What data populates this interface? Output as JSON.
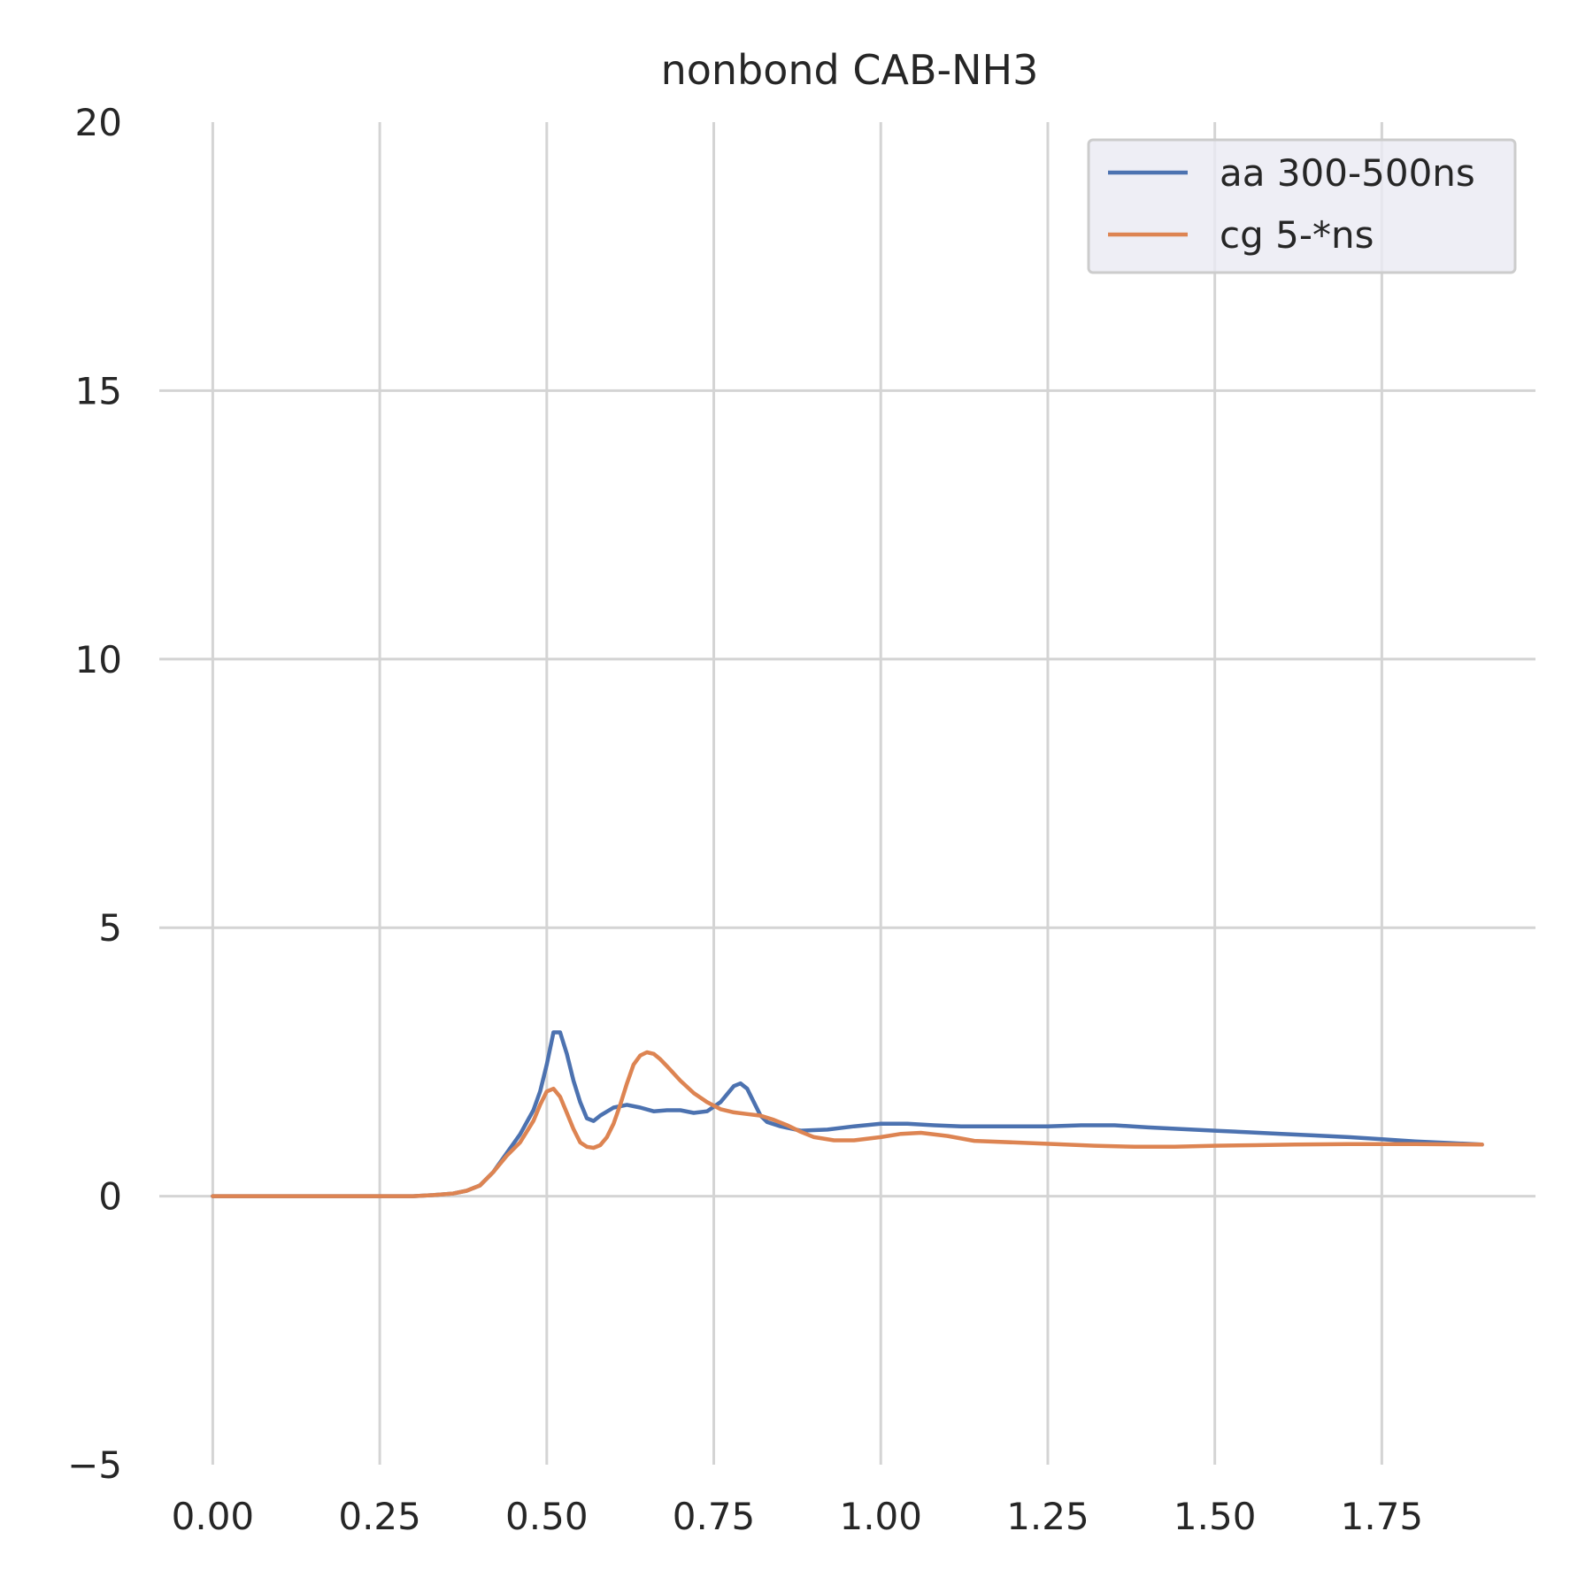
{
  "chart_data": {
    "type": "line",
    "title": "nonbond CAB-NH3",
    "xlabel": "",
    "ylabel": "",
    "xlim": [
      -0.08,
      1.98
    ],
    "ylim": [
      -5,
      20
    ],
    "x_ticks": [
      "0.00",
      "0.25",
      "0.50",
      "0.75",
      "1.00",
      "1.25",
      "1.50",
      "1.75"
    ],
    "x_tick_values": [
      0,
      0.25,
      0.5,
      0.75,
      1.0,
      1.25,
      1.5,
      1.75
    ],
    "y_ticks": [
      "−5",
      "0",
      "5",
      "10",
      "15",
      "20"
    ],
    "y_tick_values": [
      -5,
      0,
      5,
      10,
      15,
      20
    ],
    "grid": true,
    "legend_position": "top-right",
    "series": [
      {
        "name": "aa 300-500ns",
        "color": "#4c72b0",
        "x": [
          0,
          0.1,
          0.2,
          0.3,
          0.33,
          0.36,
          0.38,
          0.4,
          0.42,
          0.44,
          0.46,
          0.48,
          0.49,
          0.5,
          0.51,
          0.52,
          0.53,
          0.54,
          0.55,
          0.56,
          0.57,
          0.58,
          0.6,
          0.62,
          0.64,
          0.66,
          0.68,
          0.7,
          0.72,
          0.74,
          0.76,
          0.78,
          0.79,
          0.8,
          0.81,
          0.82,
          0.83,
          0.85,
          0.88,
          0.92,
          0.96,
          1.0,
          1.04,
          1.08,
          1.12,
          1.16,
          1.2,
          1.25,
          1.3,
          1.35,
          1.4,
          1.45,
          1.5,
          1.55,
          1.6,
          1.65,
          1.7,
          1.75,
          1.8,
          1.85,
          1.9
        ],
        "y": [
          0,
          0,
          0,
          0,
          0.02,
          0.05,
          0.1,
          0.2,
          0.45,
          0.8,
          1.15,
          1.6,
          1.95,
          2.45,
          3.05,
          3.05,
          2.65,
          2.15,
          1.75,
          1.45,
          1.4,
          1.5,
          1.65,
          1.7,
          1.65,
          1.58,
          1.6,
          1.6,
          1.55,
          1.58,
          1.75,
          2.05,
          2.1,
          2.0,
          1.75,
          1.5,
          1.38,
          1.3,
          1.22,
          1.24,
          1.3,
          1.35,
          1.35,
          1.32,
          1.3,
          1.3,
          1.3,
          1.3,
          1.32,
          1.32,
          1.28,
          1.25,
          1.22,
          1.19,
          1.16,
          1.13,
          1.1,
          1.06,
          1.02,
          0.99,
          0.96
        ]
      },
      {
        "name": "cg 5-*ns",
        "color": "#dd8452",
        "x": [
          0,
          0.1,
          0.2,
          0.3,
          0.33,
          0.36,
          0.38,
          0.4,
          0.42,
          0.44,
          0.46,
          0.48,
          0.49,
          0.5,
          0.51,
          0.52,
          0.53,
          0.54,
          0.55,
          0.56,
          0.57,
          0.58,
          0.59,
          0.6,
          0.61,
          0.62,
          0.63,
          0.64,
          0.65,
          0.66,
          0.67,
          0.68,
          0.7,
          0.72,
          0.74,
          0.76,
          0.78,
          0.8,
          0.82,
          0.84,
          0.86,
          0.88,
          0.9,
          0.93,
          0.96,
          1.0,
          1.03,
          1.06,
          1.1,
          1.14,
          1.2,
          1.26,
          1.32,
          1.38,
          1.44,
          1.5,
          1.56,
          1.62,
          1.7,
          1.8,
          1.9
        ],
        "y": [
          0,
          0,
          0,
          0,
          0.02,
          0.05,
          0.1,
          0.2,
          0.45,
          0.75,
          1.0,
          1.4,
          1.7,
          1.95,
          2.0,
          1.85,
          1.55,
          1.25,
          1.0,
          0.92,
          0.9,
          0.95,
          1.1,
          1.35,
          1.7,
          2.1,
          2.45,
          2.62,
          2.68,
          2.65,
          2.55,
          2.42,
          2.15,
          1.92,
          1.75,
          1.62,
          1.56,
          1.53,
          1.5,
          1.42,
          1.32,
          1.2,
          1.1,
          1.04,
          1.04,
          1.1,
          1.16,
          1.18,
          1.12,
          1.03,
          1.0,
          0.97,
          0.94,
          0.92,
          0.92,
          0.94,
          0.95,
          0.96,
          0.97,
          0.97,
          0.96
        ]
      }
    ]
  }
}
